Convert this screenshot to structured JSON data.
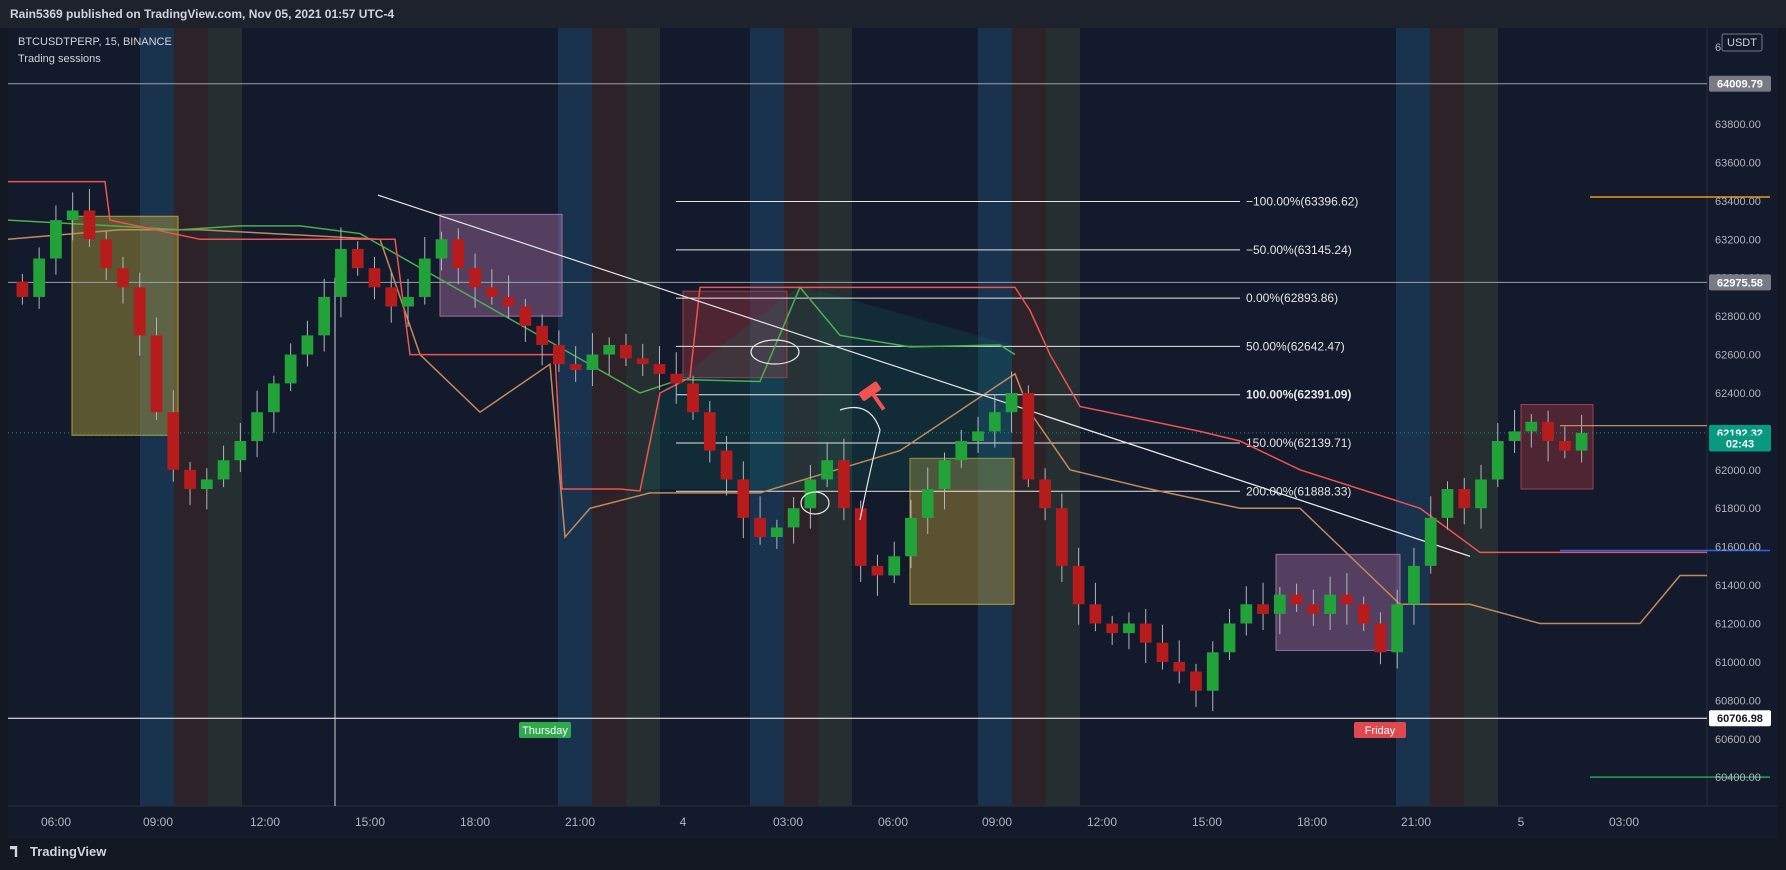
{
  "header": {
    "published": "Rain5369 published on TradingView.com, Nov 05, 2021 01:57 UTC-4"
  },
  "legend": {
    "symbol": "BTCUSDTPERP, 15, BINANCE",
    "indicator": "Trading sessions"
  },
  "footer": {
    "brand": "TradingView"
  },
  "price_axis": {
    "currency": "USDT",
    "ticks": [
      "64200.00",
      "64000.00",
      "63800.00",
      "63600.00",
      "63400.00",
      "63200.00",
      "63000.00",
      "62800.00",
      "62600.00",
      "62400.00",
      "62200.00",
      "62000.00",
      "61800.00",
      "61600.00",
      "61400.00",
      "61200.00",
      "61000.00",
      "60800.00",
      "60600.00",
      "60400.00"
    ],
    "tick_values": [
      64200,
      64000,
      63800,
      63600,
      63400,
      63200,
      63000,
      62800,
      62600,
      62400,
      62200,
      62000,
      61800,
      61600,
      61400,
      61200,
      61000,
      60800,
      60600,
      60400
    ],
    "labels": [
      {
        "text": "64009.79",
        "value": 64009.79,
        "color": "#787b86"
      },
      {
        "text": "62975.58",
        "value": 62975.58,
        "color": "#787b86"
      },
      {
        "text": "62192.32",
        "value": 62192.32,
        "color": "#089981"
      },
      {
        "text": "02:43",
        "value": 62137,
        "color": "#089981"
      },
      {
        "text": "60706.98",
        "value": 60706.98,
        "color": "#ffffff"
      }
    ]
  },
  "time_axis": {
    "labels": [
      "06:00",
      "09:00",
      "12:00",
      "15:00",
      "18:00",
      "21:00",
      "4",
      "03:00",
      "06:00",
      "09:00",
      "12:00",
      "15:00",
      "18:00",
      "21:00",
      "5",
      "03:00"
    ]
  },
  "day_markers": [
    {
      "text": "Thursday",
      "color": "#2eaa4d"
    },
    {
      "text": "Friday",
      "color": "#e0484e"
    }
  ],
  "fib_levels": [
    {
      "label": "−100.00%(63396.62)",
      "value": 63396.62
    },
    {
      "label": "−50.00%(63145.24)",
      "value": 63145.24
    },
    {
      "label": "0.00%(62893.86)",
      "value": 62893.86
    },
    {
      "label": "50.00%(62642.47)",
      "value": 62642.47
    },
    {
      "label": "100.00%(62391.09)",
      "value": 62391.09
    },
    {
      "label": "150.00%(62139.71)",
      "value": 62139.71
    },
    {
      "label": "200.00%(61888.33)",
      "value": 61888.33
    }
  ],
  "chart_data": {
    "type": "candlestick",
    "symbol": "BTCUSDTPERP",
    "interval": "15",
    "exchange": "BINANCE",
    "ylim": [
      60250,
      64300
    ],
    "close_series_approx": [
      62900,
      63100,
      63300,
      63350,
      63200,
      63050,
      62950,
      62700,
      62300,
      62000,
      61900,
      61950,
      62050,
      62150,
      62300,
      62450,
      62600,
      62700,
      62900,
      63150,
      63050,
      62950,
      62850,
      62900,
      63100,
      63200,
      63050,
      62950,
      62900,
      62850,
      62750,
      62650,
      62550,
      62520,
      62600,
      62650,
      62580,
      62550,
      62500,
      62450,
      62300,
      62100,
      61950,
      61750,
      61650,
      61700,
      61800,
      61950,
      62050,
      61800,
      61500,
      61450,
      61550,
      61750,
      61900,
      62050,
      62150,
      62200,
      62300,
      62400,
      61950,
      61800,
      61500,
      61300,
      61200,
      61150,
      61200,
      61100,
      61000,
      60950,
      60850,
      61050,
      61200,
      61300,
      61250,
      61350,
      61300,
      61250,
      61350,
      61300,
      61200,
      61050,
      61300,
      61500,
      61750,
      61900,
      61800,
      61950,
      62150,
      62200,
      62250,
      62150,
      62100,
      62192.32
    ],
    "horizontal_lines": [
      64009.79,
      62975.58,
      60706.98
    ]
  }
}
